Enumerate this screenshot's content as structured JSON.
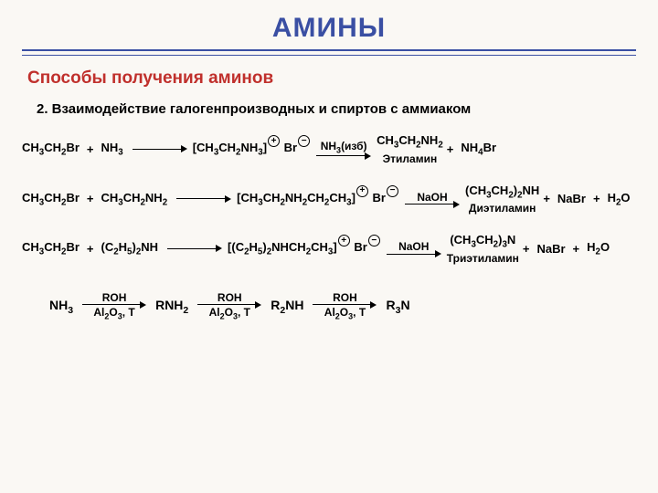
{
  "colors": {
    "title": "#3a4fa3",
    "rule": "#3a4fa3",
    "subtitle": "#c0302c",
    "text": "#000000",
    "bg": "#faf8f4"
  },
  "fontsizes": {
    "title": 30,
    "subtitle": 19,
    "section": 15,
    "rxn": 13,
    "arrow_label": 12,
    "under_label": 12
  },
  "title": "АМИНЫ",
  "subtitle": "Способы получения аминов",
  "section_heading": "2. Взаимодействие галогенпроизводных и спиртов с аммиаком",
  "reactions": [
    {
      "left": [
        "CH₃CH₂Br",
        "+",
        "NH₃"
      ],
      "arrow1": {
        "top": "",
        "bottom": ""
      },
      "mid_bracket": "CH₃CH₂NH₃",
      "mid_charge_pos": "+",
      "mid_anion": "Br",
      "mid_charge_neg": "−",
      "arrow2": {
        "top": "NH₃(изб)",
        "bottom": ""
      },
      "product": "CH₃CH₂NH₂",
      "product_label": "Этиламин",
      "tail": [
        "+",
        "NH₄Br"
      ]
    },
    {
      "left": [
        "CH₃CH₂Br",
        "+",
        "CH₃CH₂NH₂"
      ],
      "arrow1": {
        "top": "",
        "bottom": ""
      },
      "mid_bracket": "CH₃CH₂NH₂CH₂CH₃",
      "mid_charge_pos": "+",
      "mid_anion": "Br",
      "mid_charge_neg": "−",
      "arrow2": {
        "top": "NaOH",
        "bottom": ""
      },
      "product": "(CH₃CH₂)₂NH",
      "product_label": "Диэтиламин",
      "tail": [
        "+",
        "NaBr",
        "+",
        "H₂O"
      ]
    },
    {
      "left": [
        "CH₃CH₂Br",
        "+",
        "(C₂H₅)₂NH"
      ],
      "arrow1": {
        "top": "",
        "bottom": ""
      },
      "mid_bracket": "(C₂H₅)₂NHCH₂CH₃",
      "mid_charge_pos": "+",
      "mid_anion": "Br",
      "mid_charge_neg": "−",
      "arrow2": {
        "top": "NaOH",
        "bottom": ""
      },
      "product": "(CH₃CH₂)₃N",
      "product_label": "Триэтиламин",
      "tail": [
        "+",
        "NaBr",
        "+",
        "H₂O"
      ]
    }
  ],
  "chain": {
    "steps": [
      "NH₃",
      "RNH₂",
      "R₂NH",
      "R₃N"
    ],
    "arrow_top": "ROH",
    "arrow_bottom": "Al₂O₃, T"
  }
}
